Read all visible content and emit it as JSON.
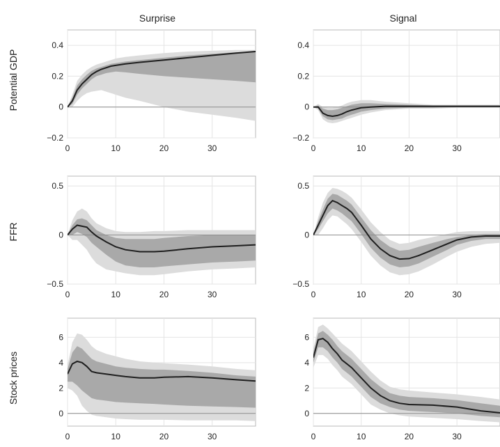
{
  "columns": [
    "Surprise",
    "Signal"
  ],
  "rows": [
    "Potential GDP",
    "FFR",
    "Stock prices"
  ],
  "colors": {
    "band_outer": "#dcdcdc",
    "band_inner": "#a9a9a9",
    "line": "#1e1e1e",
    "zero_line": "#8c8c8c",
    "grid": "#e4e4e4",
    "axes": "#b8b8b8"
  },
  "chart_data": [
    {
      "type": "area",
      "title": "Surprise",
      "ylabel": "Potential GDP",
      "xlim": [
        0,
        39
      ],
      "ylim": [
        -0.2,
        0.5
      ],
      "xticks": [
        0,
        10,
        20,
        30
      ],
      "xtick_labels": [
        "0",
        "10",
        "20",
        "30"
      ],
      "yticks": [
        -0.2,
        0,
        0.2,
        0.4
      ],
      "ytick_labels": [
        "−0.2",
        "0",
        "0.2",
        "0.4"
      ],
      "grid": true,
      "x": [
        0,
        1,
        2,
        3,
        4,
        5,
        6,
        7,
        8,
        9,
        10,
        12,
        15,
        20,
        25,
        30,
        35,
        39
      ],
      "median": [
        0.0,
        0.04,
        0.11,
        0.15,
        0.18,
        0.21,
        0.23,
        0.245,
        0.255,
        0.265,
        0.27,
        0.28,
        0.29,
        0.305,
        0.32,
        0.335,
        0.35,
        0.36
      ],
      "inner_upper": [
        0.0,
        0.06,
        0.14,
        0.18,
        0.21,
        0.235,
        0.25,
        0.26,
        0.27,
        0.28,
        0.285,
        0.295,
        0.305,
        0.32,
        0.335,
        0.345,
        0.355,
        0.36
      ],
      "inner_lower": [
        0.0,
        0.02,
        0.08,
        0.12,
        0.15,
        0.18,
        0.2,
        0.21,
        0.22,
        0.225,
        0.23,
        0.225,
        0.215,
        0.2,
        0.19,
        0.18,
        0.17,
        0.16
      ],
      "outer_upper": [
        0.0,
        0.08,
        0.17,
        0.21,
        0.24,
        0.26,
        0.275,
        0.285,
        0.295,
        0.305,
        0.315,
        0.325,
        0.335,
        0.35,
        0.36,
        0.365,
        0.37,
        0.37
      ],
      "outer_lower": [
        0.0,
        0.0,
        0.04,
        0.07,
        0.09,
        0.1,
        0.105,
        0.11,
        0.1,
        0.09,
        0.08,
        0.06,
        0.04,
        0.0,
        -0.03,
        -0.05,
        -0.07,
        -0.09
      ]
    },
    {
      "type": "area",
      "title": "Signal",
      "ylabel": "",
      "xlim": [
        0,
        39
      ],
      "ylim": [
        -0.2,
        0.5
      ],
      "xticks": [
        0,
        10,
        20,
        30
      ],
      "xtick_labels": [
        "0",
        "10",
        "20",
        "30"
      ],
      "yticks": [
        -0.2,
        0,
        0.2,
        0.4
      ],
      "ytick_labels": [
        "−0.2",
        "0",
        "0.2",
        "0.4"
      ],
      "grid": true,
      "x": [
        0,
        1,
        2,
        3,
        4,
        5,
        6,
        7,
        8,
        10,
        12,
        15,
        20,
        25,
        30,
        35,
        39
      ],
      "median": [
        0.0,
        0.0,
        -0.04,
        -0.055,
        -0.06,
        -0.055,
        -0.045,
        -0.03,
        -0.02,
        -0.005,
        0.0,
        0.005,
        0.005,
        0.005,
        0.005,
        0.005,
        0.005
      ],
      "inner_upper": [
        0.0,
        0.01,
        -0.01,
        -0.02,
        -0.02,
        -0.015,
        -0.005,
        0.005,
        0.015,
        0.025,
        0.025,
        0.02,
        0.015,
        0.01,
        0.01,
        0.01,
        0.01
      ],
      "inner_lower": [
        0.0,
        -0.01,
        -0.06,
        -0.08,
        -0.085,
        -0.08,
        -0.075,
        -0.06,
        -0.05,
        -0.03,
        -0.02,
        -0.01,
        -0.005,
        -0.005,
        0.0,
        0.0,
        0.0
      ],
      "outer_upper": [
        0.0,
        0.02,
        0.0,
        -0.005,
        -0.005,
        0.0,
        0.01,
        0.025,
        0.035,
        0.045,
        0.045,
        0.035,
        0.025,
        0.015,
        0.015,
        0.015,
        0.015
      ],
      "outer_lower": [
        0.0,
        -0.02,
        -0.08,
        -0.1,
        -0.105,
        -0.1,
        -0.09,
        -0.08,
        -0.07,
        -0.05,
        -0.035,
        -0.02,
        -0.01,
        -0.01,
        -0.005,
        -0.005,
        -0.005
      ]
    },
    {
      "type": "area",
      "title": "",
      "ylabel": "FFR",
      "xlim": [
        0,
        39
      ],
      "ylim": [
        -0.5,
        0.6
      ],
      "xticks": [
        0,
        10,
        20,
        30
      ],
      "xtick_labels": [
        "0",
        "10",
        "20",
        "30"
      ],
      "yticks": [
        -0.5,
        0,
        0.5
      ],
      "ytick_labels": [
        "−0.5",
        "0",
        "0.5"
      ],
      "grid": true,
      "x": [
        0,
        1,
        2,
        3,
        4,
        5,
        6,
        8,
        10,
        12,
        15,
        18,
        20,
        25,
        30,
        35,
        39
      ],
      "median": [
        0.0,
        0.06,
        0.1,
        0.09,
        0.08,
        0.03,
        -0.01,
        -0.07,
        -0.12,
        -0.15,
        -0.17,
        -0.17,
        -0.165,
        -0.14,
        -0.12,
        -0.11,
        -0.1
      ],
      "inner_upper": [
        0.0,
        0.1,
        0.16,
        0.17,
        0.15,
        0.1,
        0.05,
        0.0,
        -0.03,
        -0.04,
        -0.04,
        -0.04,
        -0.03,
        -0.01,
        0.0,
        0.0,
        0.0
      ],
      "inner_lower": [
        0.0,
        0.0,
        0.03,
        0.01,
        -0.02,
        -0.08,
        -0.12,
        -0.2,
        -0.27,
        -0.31,
        -0.33,
        -0.33,
        -0.32,
        -0.3,
        -0.28,
        -0.27,
        -0.26
      ],
      "outer_upper": [
        0.0,
        0.15,
        0.24,
        0.27,
        0.24,
        0.17,
        0.12,
        0.07,
        0.04,
        0.03,
        0.03,
        0.04,
        0.04,
        0.05,
        0.05,
        0.05,
        0.05
      ],
      "outer_lower": [
        0.0,
        -0.05,
        -0.05,
        -0.1,
        -0.15,
        -0.23,
        -0.29,
        -0.35,
        -0.37,
        -0.39,
        -0.41,
        -0.41,
        -0.4,
        -0.37,
        -0.35,
        -0.34,
        -0.33
      ]
    },
    {
      "type": "area",
      "title": "",
      "ylabel": "",
      "xlim": [
        0,
        39
      ],
      "ylim": [
        -0.5,
        0.6
      ],
      "xticks": [
        0,
        10,
        20,
        30
      ],
      "xtick_labels": [
        "0",
        "10",
        "20",
        "30"
      ],
      "yticks": [
        -0.5,
        0,
        0.5
      ],
      "ytick_labels": [
        "−0.5",
        "0",
        "0.5"
      ],
      "grid": true,
      "x": [
        0,
        1,
        2,
        3,
        4,
        5,
        6,
        7,
        8,
        10,
        12,
        14,
        16,
        18,
        20,
        22,
        25,
        28,
        30,
        33,
        36,
        39
      ],
      "median": [
        0.0,
        0.1,
        0.2,
        0.3,
        0.35,
        0.33,
        0.3,
        0.27,
        0.23,
        0.1,
        -0.04,
        -0.14,
        -0.21,
        -0.245,
        -0.24,
        -0.21,
        -0.15,
        -0.09,
        -0.05,
        -0.02,
        -0.01,
        -0.01
      ],
      "inner_upper": [
        0.0,
        0.14,
        0.26,
        0.37,
        0.42,
        0.41,
        0.38,
        0.35,
        0.31,
        0.18,
        0.05,
        -0.05,
        -0.12,
        -0.16,
        -0.15,
        -0.12,
        -0.08,
        -0.04,
        -0.02,
        0.0,
        0.01,
        0.01
      ],
      "inner_lower": [
        0.0,
        0.06,
        0.14,
        0.22,
        0.27,
        0.25,
        0.22,
        0.18,
        0.14,
        0.01,
        -0.13,
        -0.23,
        -0.3,
        -0.33,
        -0.32,
        -0.29,
        -0.22,
        -0.15,
        -0.1,
        -0.06,
        -0.04,
        -0.04
      ],
      "outer_upper": [
        0.0,
        0.18,
        0.33,
        0.43,
        0.48,
        0.47,
        0.45,
        0.42,
        0.38,
        0.26,
        0.13,
        0.03,
        -0.05,
        -0.09,
        -0.08,
        -0.05,
        -0.02,
        0.01,
        0.03,
        0.04,
        0.04,
        0.04
      ],
      "outer_lower": [
        0.0,
        0.0,
        0.07,
        0.15,
        0.2,
        0.19,
        0.15,
        0.11,
        0.06,
        -0.07,
        -0.21,
        -0.31,
        -0.38,
        -0.41,
        -0.4,
        -0.37,
        -0.3,
        -0.22,
        -0.17,
        -0.12,
        -0.09,
        -0.08
      ]
    },
    {
      "type": "area",
      "title": "",
      "ylabel": "Stock prices",
      "xlim": [
        0,
        39
      ],
      "ylim": [
        -1,
        7.5
      ],
      "xticks": [
        0,
        10,
        20,
        30
      ],
      "xtick_labels": [
        "0",
        "10",
        "20",
        "30"
      ],
      "yticks": [
        0,
        2,
        4,
        6
      ],
      "ytick_labels": [
        "0",
        "2",
        "4",
        "6"
      ],
      "grid": true,
      "x": [
        0,
        1,
        2,
        3,
        4,
        5,
        6,
        8,
        10,
        12,
        15,
        18,
        20,
        25,
        30,
        35,
        39
      ],
      "median": [
        3.1,
        3.9,
        4.1,
        4.0,
        3.7,
        3.3,
        3.2,
        3.1,
        3.0,
        2.9,
        2.8,
        2.8,
        2.85,
        2.9,
        2.8,
        2.65,
        2.55
      ],
      "inner_upper": [
        3.5,
        4.8,
        5.3,
        5.1,
        4.7,
        4.3,
        4.1,
        3.9,
        3.7,
        3.6,
        3.5,
        3.45,
        3.45,
        3.35,
        3.2,
        3.0,
        2.9
      ],
      "inner_lower": [
        2.5,
        2.5,
        2.2,
        1.8,
        1.5,
        1.2,
        1.1,
        1.0,
        0.9,
        0.85,
        0.8,
        0.75,
        0.7,
        0.6,
        0.55,
        0.5,
        0.45
      ],
      "outer_upper": [
        3.8,
        5.6,
        6.3,
        6.2,
        5.8,
        5.3,
        5.0,
        4.7,
        4.5,
        4.3,
        4.1,
        4.0,
        3.95,
        3.85,
        3.7,
        3.5,
        3.4
      ],
      "outer_lower": [
        2.0,
        1.8,
        1.4,
        0.6,
        0.2,
        -0.1,
        -0.2,
        -0.3,
        -0.4,
        -0.45,
        -0.5,
        -0.5,
        -0.5,
        -0.55,
        -0.55,
        -0.55,
        -0.6
      ]
    },
    {
      "type": "area",
      "title": "",
      "ylabel": "",
      "xlim": [
        0,
        39
      ],
      "ylim": [
        -1,
        7.5
      ],
      "xticks": [
        0,
        10,
        20,
        30
      ],
      "xtick_labels": [
        "0",
        "10",
        "20",
        "30"
      ],
      "yticks": [
        0,
        2,
        4,
        6
      ],
      "ytick_labels": [
        "0",
        "2",
        "4",
        "6"
      ],
      "grid": true,
      "x": [
        0,
        1,
        2,
        3,
        4,
        5,
        6,
        7,
        8,
        10,
        12,
        14,
        16,
        18,
        20,
        25,
        30,
        35,
        39
      ],
      "median": [
        4.4,
        5.8,
        5.9,
        5.6,
        5.1,
        4.7,
        4.2,
        3.9,
        3.6,
        2.8,
        2.0,
        1.4,
        1.0,
        0.8,
        0.7,
        0.65,
        0.5,
        0.2,
        0.05
      ],
      "inner_upper": [
        4.8,
        6.3,
        6.5,
        6.2,
        5.8,
        5.3,
        4.9,
        4.6,
        4.3,
        3.5,
        2.7,
        2.1,
        1.6,
        1.4,
        1.3,
        1.2,
        1.05,
        0.8,
        0.6
      ],
      "inner_lower": [
        4.0,
        5.2,
        5.2,
        4.9,
        4.4,
        4.0,
        3.5,
        3.2,
        2.9,
        2.1,
        1.3,
        0.8,
        0.5,
        0.3,
        0.2,
        0.1,
        0.0,
        -0.2,
        -0.3
      ],
      "outer_upper": [
        5.1,
        6.8,
        7.0,
        6.7,
        6.3,
        5.9,
        5.5,
        5.2,
        4.9,
        4.1,
        3.3,
        2.6,
        2.1,
        1.9,
        1.8,
        1.65,
        1.5,
        1.3,
        1.1
      ],
      "outer_lower": [
        3.6,
        4.6,
        4.6,
        4.3,
        3.8,
        3.4,
        2.9,
        2.6,
        2.3,
        1.5,
        0.7,
        0.3,
        0.0,
        -0.15,
        -0.25,
        -0.35,
        -0.45,
        -0.6,
        -0.7
      ]
    }
  ]
}
